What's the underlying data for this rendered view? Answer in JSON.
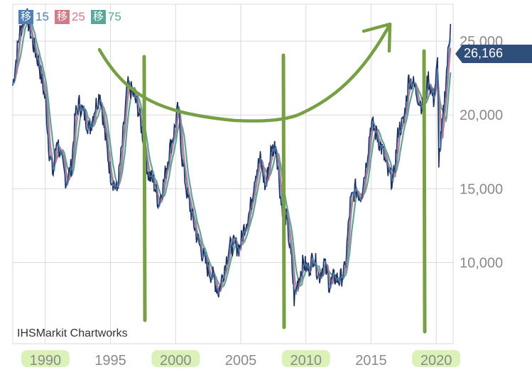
{
  "legend": [
    {
      "glyph": "移",
      "label": "15",
      "color": "#4f80b3"
    },
    {
      "glyph": "移",
      "label": "25",
      "color": "#d07a8a"
    },
    {
      "glyph": "移",
      "label": "75",
      "color": "#5aa79a"
    }
  ],
  "credit": "IHSMarkit Chartworks",
  "last_value": "26,166",
  "colors": {
    "price": "#1f2f5c",
    "ma15": "#4f80b3",
    "ma25": "#d07a8a",
    "ma75": "#5aa79a",
    "grid": "#d9d9d9",
    "axis_text": "#8a8a8a",
    "annotation": "#76a043",
    "highlight": "#d6f0b0",
    "tag": "#2f4e7a"
  },
  "chart_data": {
    "type": "line",
    "title": "",
    "xlabel": "",
    "ylabel": "",
    "x_ticks": [
      "1990",
      "1995",
      "2000",
      "2005",
      "2010",
      "2015",
      "2020"
    ],
    "y_ticks": [
      "10,000",
      "15,000",
      "20,000",
      "25,000"
    ],
    "xlim": [
      1987.5,
      2021.3
    ],
    "ylim": [
      4500,
      27500
    ],
    "highlighted_x_ticks": [
      "1990",
      "2000",
      "2010",
      "2020"
    ],
    "series": [
      {
        "x": [
          1987.5,
          1988.0,
          1988.5,
          1989.0,
          1989.5,
          1990.0,
          1990.3,
          1990.6,
          1990.9,
          1991.2,
          1991.6,
          1992.0,
          1992.3,
          1992.6,
          1993.0,
          1993.4,
          1993.8,
          1994.2,
          1994.6,
          1995.0,
          1995.5,
          1995.9,
          1996.3,
          1996.7,
          1997.1,
          1997.5,
          1997.9,
          1998.3,
          1998.7,
          1999.1,
          1999.5,
          1999.9,
          2000.2,
          2000.5,
          2000.9,
          2001.3,
          2001.7,
          2002.1,
          2002.5,
          2002.9,
          2003.3,
          2003.7,
          2004.1,
          2004.5,
          2004.9,
          2005.3,
          2005.7,
          2006.1,
          2006.5,
          2006.9,
          2007.3,
          2007.7,
          2008.1,
          2008.5,
          2008.9,
          2009.1,
          2009.4,
          2009.8,
          2010.2,
          2010.6,
          2011.0,
          2011.4,
          2011.8,
          2012.2,
          2012.6,
          2013.0,
          2013.4,
          2013.8,
          2014.2,
          2014.6,
          2015.0,
          2015.5,
          2015.9,
          2016.3,
          2016.7,
          2017.1,
          2017.5,
          2017.9,
          2018.3,
          2018.7,
          2019.0,
          2019.4,
          2019.8,
          2020.1,
          2020.2,
          2020.5,
          2020.8,
          2021.1
        ],
        "y": [
          22000,
          25500,
          27000,
          25000,
          23500,
          21000,
          17500,
          16000,
          18500,
          17000,
          15500,
          16500,
          20000,
          20800,
          20000,
          19000,
          20500,
          21500,
          18500,
          16000,
          14800,
          18000,
          22000,
          21500,
          20500,
          18500,
          16000,
          15500,
          14000,
          15500,
          17500,
          19000,
          20500,
          17000,
          14500,
          13000,
          11500,
          10500,
          9500,
          9000,
          8000,
          9500,
          11000,
          11200,
          11000,
          12500,
          13500,
          16000,
          17000,
          15000,
          17500,
          18000,
          14000,
          13000,
          10000,
          7500,
          8800,
          10000,
          9500,
          10500,
          9000,
          10000,
          8500,
          9000,
          8800,
          9500,
          14000,
          15000,
          14500,
          16500,
          19500,
          18500,
          17500,
          16000,
          15500,
          19000,
          19500,
          22500,
          22000,
          21000,
          20500,
          22500,
          21000,
          23500,
          17000,
          19500,
          23000,
          26166
        ]
      }
    ],
    "annotations": [
      "arc-arrow",
      "vline-2000",
      "vline-2009",
      "vline-2020"
    ]
  }
}
